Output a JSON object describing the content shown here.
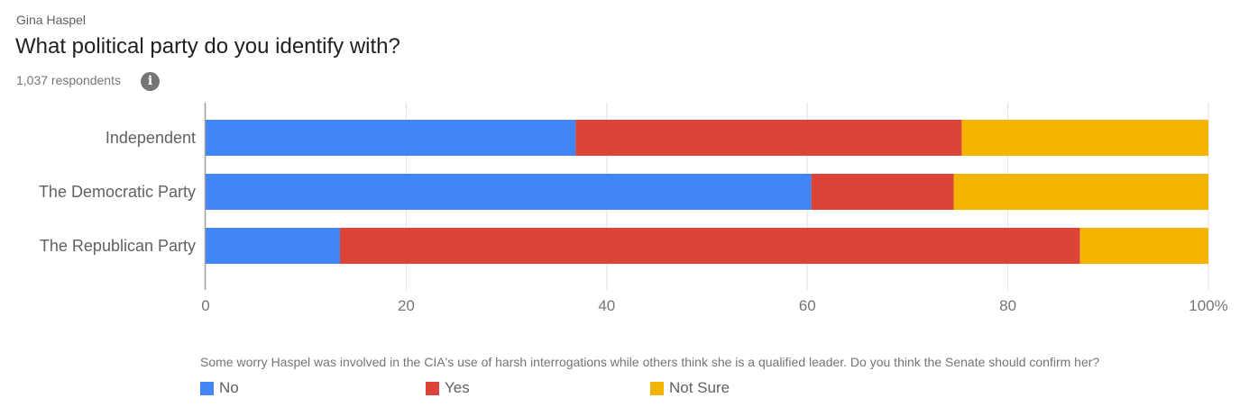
{
  "header": {
    "supertitle": "Gina Haspel",
    "title": "What political party do you identify with?",
    "respondents": "1,037 respondents",
    "info_icon": "info-icon"
  },
  "chart_data": {
    "type": "bar",
    "orientation": "horizontal",
    "stacked": true,
    "categories": [
      "Independent",
      "The Democratic Party",
      "The Republican Party"
    ],
    "series": [
      {
        "name": "No",
        "color": "#4285f4",
        "values": [
          36.9,
          60.4,
          13.4
        ]
      },
      {
        "name": "Yes",
        "color": "#db4437",
        "values": [
          38.5,
          14.2,
          73.8
        ]
      },
      {
        "name": "Not Sure",
        "color": "#f4b400",
        "values": [
          24.6,
          25.4,
          12.8
        ]
      }
    ],
    "xlim": [
      0,
      100
    ],
    "x_ticks": [
      "0",
      "20",
      "40",
      "60",
      "80",
      "100%"
    ],
    "grid": true,
    "legend_position": "bottom",
    "question": "Some worry Haspel was involved in the CIA's use of harsh interrogations while others think she is a qualified leader. Do you think the Senate should confirm her?"
  }
}
